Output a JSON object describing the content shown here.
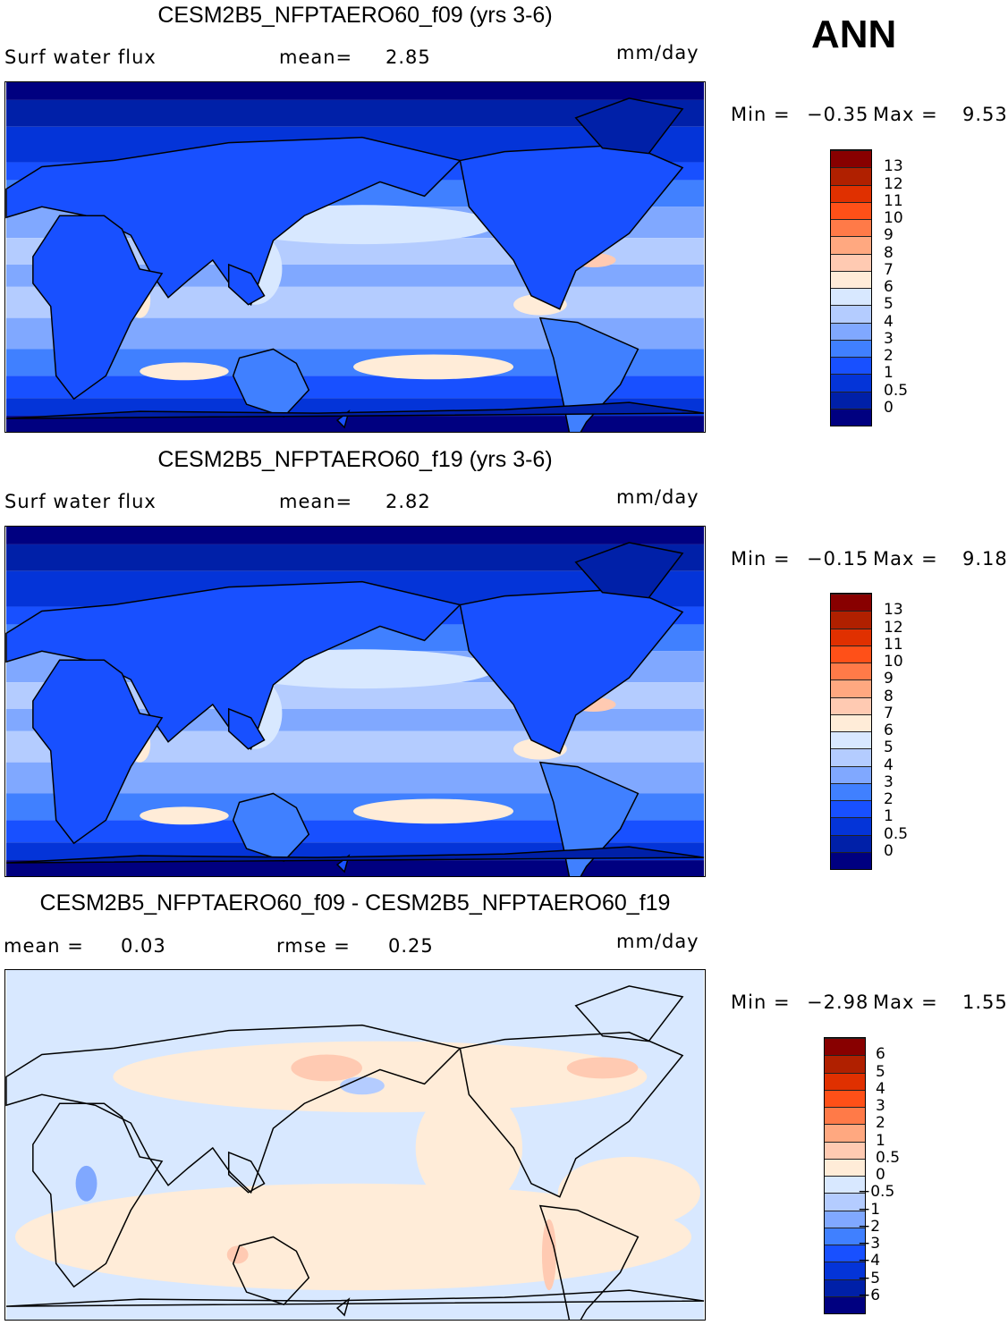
{
  "season": "ANN",
  "colors": [
    "#000080",
    "#0020a8",
    "#0434d8",
    "#1850ff",
    "#4080ff",
    "#80a8ff",
    "#b4ccff",
    "#d8e8ff",
    "#ffecd8",
    "#ffcab2",
    "#ffa880",
    "#ff7a48",
    "#ff5018",
    "#e03000",
    "#b02000",
    "#880000"
  ],
  "panels": [
    {
      "title": "CESM2B5_NFPTAERO60_f09 (yrs 3-6)",
      "variable": "Surf  water  flux",
      "stat1_label": "mean=",
      "stat1_value": "2.85",
      "units": "mm/day",
      "min_label": "Min  =",
      "min": "−0.35",
      "max_label": "Max  =",
      "max": "9.53",
      "levels": [
        "0",
        "0.5",
        "1",
        "2",
        "3",
        "4",
        "5",
        "6",
        "7",
        "8",
        "9",
        "10",
        "11",
        "12",
        "13"
      ]
    },
    {
      "title": "CESM2B5_NFPTAERO60_f19 (yrs 3-6)",
      "variable": "Surf  water  flux",
      "stat1_label": "mean=",
      "stat1_value": "2.82",
      "units": "mm/day",
      "min_label": "Min  =",
      "min": "−0.15",
      "max_label": "Max  =",
      "max": "9.18",
      "levels": [
        "0",
        "0.5",
        "1",
        "2",
        "3",
        "4",
        "5",
        "6",
        "7",
        "8",
        "9",
        "10",
        "11",
        "12",
        "13"
      ]
    },
    {
      "title": "CESM2B5_NFPTAERO60_f09 - CESM2B5_NFPTAERO60_f19",
      "stat1_label": "mean  =",
      "stat1_value": "0.03",
      "stat2_label": "rmse  =",
      "stat2_value": "0.25",
      "units": "mm/day",
      "min_label": "Min  =",
      "min": "−2.98",
      "max_label": "Max  =",
      "max": "1.55",
      "levels": [
        "−6",
        "−5",
        "−4",
        "−3",
        "−2",
        "−1",
        "−0.5",
        "0",
        "0.5",
        "1",
        "2",
        "3",
        "4",
        "5",
        "6"
      ]
    }
  ]
}
